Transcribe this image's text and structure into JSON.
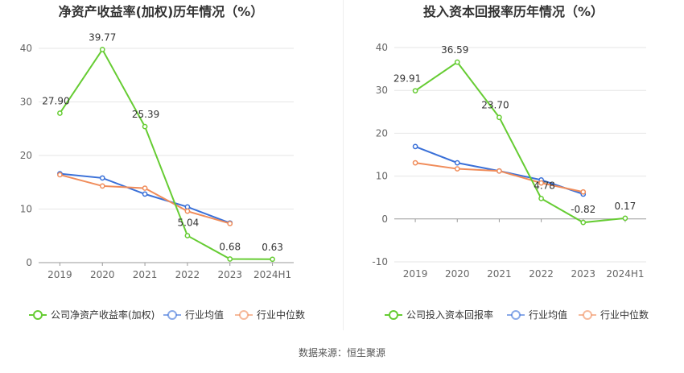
{
  "source": "数据来源：恒生聚源",
  "colors": {
    "company": "#66cc33",
    "avg": "#3a70d8",
    "median": "#f08c5a",
    "grid": "#e6e6e6",
    "axis": "#666666"
  },
  "chart_data": [
    {
      "type": "line",
      "title": "净资产收益率(加权)历年情况（%）",
      "categories": [
        "2019",
        "2020",
        "2021",
        "2022",
        "2023",
        "2024H1"
      ],
      "ylim": [
        0,
        40
      ],
      "yticks": [
        0,
        10,
        20,
        30,
        40
      ],
      "grid": true,
      "legend": "bottom",
      "series": [
        {
          "name": "公司净资产收益率(加权)",
          "key": "company",
          "values": [
            27.9,
            39.77,
            25.39,
            5.04,
            0.68,
            0.63
          ],
          "labels": [
            "27.90",
            "39.77",
            "25.39",
            "5.04",
            "0.68",
            "0.63"
          ]
        },
        {
          "name": "行业均值",
          "key": "avg",
          "values": [
            16.6,
            15.8,
            12.8,
            10.4,
            7.4,
            null
          ]
        },
        {
          "name": "行业中位数",
          "key": "median",
          "values": [
            16.4,
            14.3,
            13.9,
            9.6,
            7.3,
            null
          ]
        }
      ]
    },
    {
      "type": "line",
      "title": "投入资本回报率历年情况（%）",
      "categories": [
        "2019",
        "2020",
        "2021",
        "2022",
        "2023",
        "2024H1"
      ],
      "ylim": [
        -10,
        40
      ],
      "yticks": [
        -10,
        0,
        10,
        20,
        30,
        40
      ],
      "grid": true,
      "legend": "bottom",
      "series": [
        {
          "name": "公司投入资本回报率",
          "key": "company",
          "values": [
            29.91,
            36.59,
            23.7,
            4.78,
            -0.82,
            0.17
          ],
          "labels": [
            "29.91",
            "36.59",
            "23.70",
            "4.78",
            "-0.82",
            "0.17"
          ]
        },
        {
          "name": "行业均值",
          "key": "avg",
          "values": [
            16.9,
            13.1,
            11.2,
            9.1,
            5.8,
            null
          ]
        },
        {
          "name": "行业中位数",
          "key": "median",
          "values": [
            13.1,
            11.7,
            11.2,
            8.4,
            6.3,
            null
          ]
        }
      ]
    }
  ]
}
